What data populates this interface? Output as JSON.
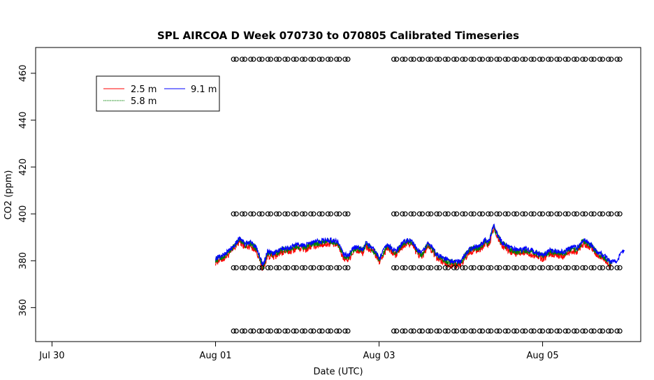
{
  "chart_data": {
    "type": "line",
    "title": "SPL AIRCOA D  Week 070730 to 070805  Calibrated Timeseries",
    "xlabel": "Date (UTC)",
    "ylabel": "CO2 (ppm)",
    "x_unit": "days since 2007-07-30 00:00 UTC",
    "xlim": [
      -0.2,
      7.2
    ],
    "ylim": [
      345.5,
      471
    ],
    "x_ticks": [
      {
        "x": 0,
        "label": "Jul 30"
      },
      {
        "x": 2,
        "label": "Aug 01"
      },
      {
        "x": 4,
        "label": "Aug 03"
      },
      {
        "x": 6,
        "label": "Aug 05"
      }
    ],
    "y_ticks": [
      360,
      380,
      400,
      420,
      440,
      460
    ],
    "legend": {
      "placement": "top-left",
      "entries": [
        {
          "name": "2.5 m",
          "color": "#ff0000"
        },
        {
          "name": "5.8 m",
          "color": "#008000"
        },
        {
          "name": "9.1 m",
          "color": "#0000ff"
        }
      ]
    },
    "series_base": {
      "x": [
        2.0,
        2.1,
        2.2,
        2.3,
        2.36,
        2.42,
        2.5,
        2.58,
        2.6,
        2.64,
        2.7,
        2.8,
        2.9,
        3.0,
        3.1,
        3.2,
        3.3,
        3.4,
        3.5,
        3.56,
        3.62,
        3.7,
        3.8,
        3.84,
        3.9,
        3.96,
        4.0,
        4.1,
        4.2,
        4.3,
        4.38,
        4.46,
        4.52,
        4.6,
        4.7,
        4.8,
        4.86,
        4.94,
        5.0,
        5.1,
        5.16,
        5.22,
        5.3,
        5.34,
        5.4,
        5.5,
        5.6,
        5.7,
        5.8,
        5.9,
        6.0,
        6.1,
        6.2,
        6.26,
        6.36,
        6.42,
        6.5,
        6.6,
        6.66,
        6.76,
        6.82,
        6.9,
        6.96,
        7.0
      ],
      "y": [
        381.0,
        382.5,
        385.5,
        390.0,
        387.0,
        388.0,
        386.0,
        378.0,
        380.0,
        384.0,
        383.0,
        385.0,
        385.5,
        387.0,
        386.5,
        388.0,
        388.5,
        389.0,
        388.0,
        383.0,
        382.0,
        386.0,
        385.0,
        387.5,
        386.0,
        384.0,
        381.0,
        387.0,
        384.0,
        388.0,
        389.0,
        385.0,
        383.0,
        388.0,
        383.0,
        381.0,
        380.0,
        379.5,
        380.0,
        385.0,
        386.0,
        386.0,
        389.0,
        388.0,
        395.0,
        388.0,
        385.5,
        384.5,
        385.0,
        384.0,
        382.5,
        384.5,
        384.0,
        383.5,
        386.0,
        385.5,
        389.0,
        387.0,
        384.0,
        382.0,
        379.5,
        380.0,
        383.0,
        384.0
      ]
    },
    "series": [
      {
        "name": "2.5 m",
        "color": "#ff0000",
        "offset": -1.5,
        "noise": 1.6,
        "xmax": 6.84
      },
      {
        "name": "5.8 m",
        "color": "#008000",
        "offset": -0.6,
        "noise": 1.3,
        "xmax": 6.84
      },
      {
        "name": "9.1 m",
        "color": "#0000ff",
        "offset": 0.0,
        "noise": 1.1,
        "xmax": 7.0
      }
    ],
    "calibration_markers": {
      "levels": [
        350,
        377,
        400,
        466
      ],
      "segments": [
        [
          2.22,
          3.64
        ],
        [
          4.18,
          6.98
        ]
      ],
      "step": 0.105,
      "marker": "open-circle"
    }
  }
}
